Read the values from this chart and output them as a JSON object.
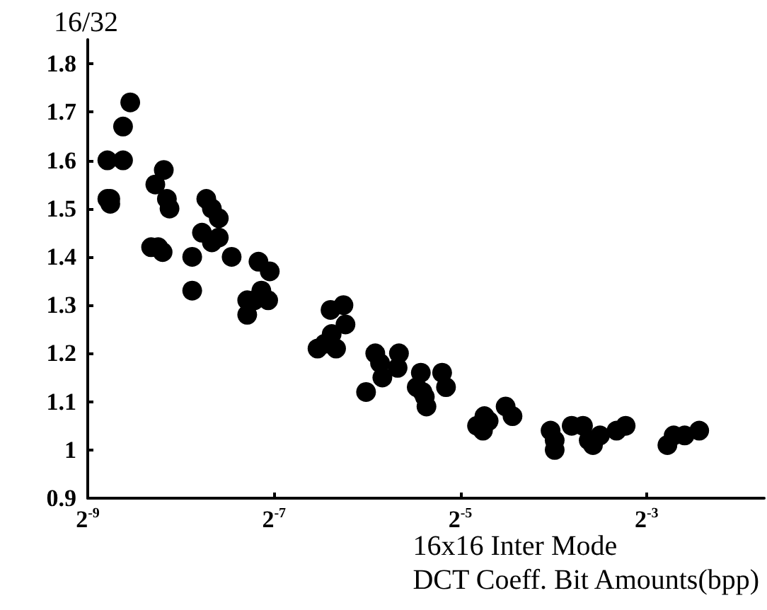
{
  "chart_data": {
    "type": "scatter",
    "ylabel": "16/32",
    "xlabel": "16x16 Inter Mode\nDCT Coeff. Bit Amounts(bpp)",
    "log": "x",
    "x": [
      0.00226,
      0.00231,
      0.00231,
      0.00226,
      0.00254,
      0.00268,
      0.00254,
      0.00323,
      0.00344,
      0.00352,
      0.00359,
      0.00313,
      0.0033,
      0.00341,
      0.00425,
      0.00425,
      0.00472,
      0.00492,
      0.00518,
      0.00457,
      0.00492,
      0.00518,
      0.0057,
      0.00696,
      0.00757,
      0.0064,
      0.00675,
      0.00748,
      0.0064,
      0.00711,
      0.0119,
      0.0131,
      0.0133,
      0.012,
      0.0108,
      0.0114,
      0.0124,
      0.0155,
      0.0166,
      0.0172,
      0.0175,
      0.0196,
      0.0198,
      0.0233,
      0.0226,
      0.0236,
      0.0243,
      0.0273,
      0.0281,
      0.024,
      0.0354,
      0.0374,
      0.0386,
      0.037,
      0.0438,
      0.0461,
      0.0612,
      0.0631,
      0.0631,
      0.0716,
      0.0779,
      0.0813,
      0.0839,
      0.0884,
      0.1,
      0.107,
      0.146,
      0.153,
      0.166,
      0.185
    ],
    "values": [
      1.6,
      1.52,
      1.51,
      1.52,
      1.67,
      1.72,
      1.6,
      1.55,
      1.58,
      1.52,
      1.5,
      1.42,
      1.42,
      1.41,
      1.4,
      1.33,
      1.52,
      1.5,
      1.48,
      1.45,
      1.43,
      1.44,
      1.4,
      1.39,
      1.37,
      1.31,
      1.31,
      1.31,
      1.28,
      1.33,
      1.29,
      1.3,
      1.26,
      1.24,
      1.21,
      1.22,
      1.21,
      1.12,
      1.2,
      1.18,
      1.15,
      1.17,
      1.2,
      1.16,
      1.13,
      1.12,
      1.09,
      1.16,
      1.13,
      1.11,
      1.05,
      1.07,
      1.06,
      1.04,
      1.09,
      1.07,
      1.04,
      1.02,
      1.0,
      1.05,
      1.05,
      1.02,
      1.01,
      1.03,
      1.04,
      1.05,
      1.01,
      1.03,
      1.03,
      1.04
    ],
    "color": "#000000",
    "marker": "circle",
    "xlim": [
      0.001953125,
      0.3
    ],
    "xticks": [
      {
        "value": 0.001953125,
        "label": "2$^{-9}$"
      },
      {
        "value": 0.0078125,
        "label": "2$^{-7}$"
      },
      {
        "value": 0.03125,
        "label": "2$^{-5}$"
      },
      {
        "value": 0.125,
        "label": "2$^{-3}$"
      }
    ],
    "ylim": [
      0.9,
      1.85
    ],
    "yticks": [
      0.9,
      1,
      1.1,
      1.2,
      1.3,
      1.4,
      1.5,
      1.6,
      1.7,
      1.8
    ]
  }
}
